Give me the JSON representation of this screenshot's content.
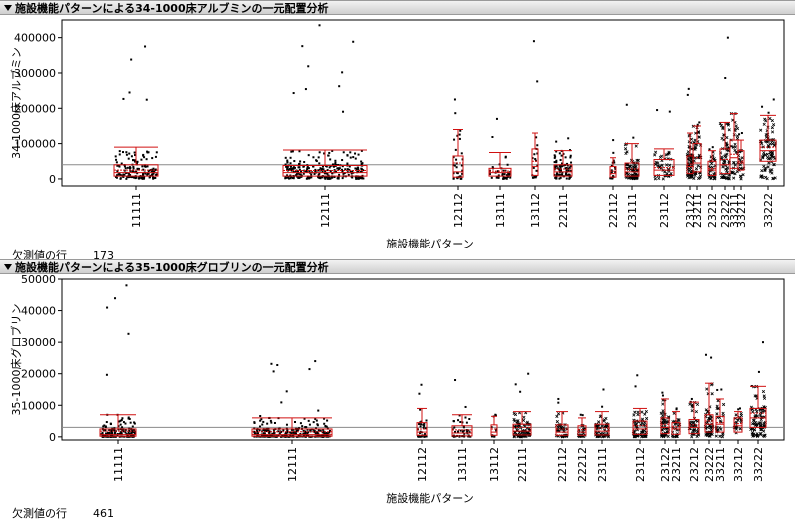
{
  "panels": [
    {
      "title": "施設機能パターンによる34-1000床アルブミンの一元配置分析",
      "missing_label": "欠測値の行",
      "missing_value": "173"
    },
    {
      "title": "施設機能パターンによる35-1000床グロブリンの一元配置分析",
      "missing_label": "欠測値の行",
      "missing_value": "461"
    }
  ],
  "chart_data": [
    {
      "type": "boxplot",
      "title": "施設機能パターンによる34-1000床アルブミンの一元配置分析",
      "xlabel": "施設機能パターン",
      "ylabel": "34-1000床アルブミン",
      "ylim": [
        -20000,
        450000
      ],
      "yticks": [
        0,
        100000,
        200000,
        300000,
        400000
      ],
      "ytick_labels": [
        "0",
        "100000",
        "200000",
        "300000",
        "400000"
      ],
      "grand_mean": 40000,
      "categories": [
        "11111",
        "12111",
        "12112",
        "13111",
        "13112",
        "22111",
        "22112",
        "23111",
        "23112",
        "23122",
        "23211",
        "23212",
        "23222",
        "33211",
        "33212",
        "33222"
      ],
      "box_stats": [
        {
          "q1": 8000,
          "median": 18000,
          "q3": 40000,
          "mean": 25000,
          "whisker_high": 90000,
          "max": 375000,
          "n": 140
        },
        {
          "q1": 8000,
          "median": 18000,
          "q3": 38000,
          "mean": 24000,
          "whisker_high": 82000,
          "max": 435000,
          "n": 260
        },
        {
          "q1": 5000,
          "median": 20000,
          "q3": 65000,
          "mean": 45000,
          "whisker_high": 140000,
          "max": 225000,
          "n": 30
        },
        {
          "q1": 8000,
          "median": 18000,
          "q3": 30000,
          "mean": 22000,
          "whisker_high": 75000,
          "max": 170000,
          "n": 40
        },
        {
          "q1": 10000,
          "median": 35000,
          "q3": 85000,
          "mean": 50000,
          "whisker_high": 130000,
          "max": 390000,
          "n": 20
        },
        {
          "q1": 8000,
          "median": 20000,
          "q3": 40000,
          "mean": 28000,
          "whisker_high": 80000,
          "max": 115000,
          "n": 80
        },
        {
          "q1": 5000,
          "median": 15000,
          "q3": 35000,
          "mean": 22000,
          "whisker_high": 60000,
          "max": 110000,
          "n": 20
        },
        {
          "q1": 8000,
          "median": 20000,
          "q3": 45000,
          "mean": 28000,
          "whisker_high": 100000,
          "max": 210000,
          "n": 70
        },
        {
          "q1": 10000,
          "median": 25000,
          "q3": 55000,
          "mean": 32000,
          "whisker_high": 85000,
          "max": 195000,
          "n": 40
        },
        {
          "q1": 15000,
          "median": 35000,
          "q3": 65000,
          "mean": 42000,
          "whisker_high": 130000,
          "max": 255000,
          "n": 60
        },
        {
          "q1": 20000,
          "median": 45000,
          "q3": 100000,
          "mean": 60000,
          "whisker_high": 150000,
          "max": 160000,
          "n": 40
        },
        {
          "q1": 10000,
          "median": 25000,
          "q3": 50000,
          "mean": 30000,
          "whisker_high": 80000,
          "max": 90000,
          "n": 30
        },
        {
          "q1": 15000,
          "median": 40000,
          "q3": 85000,
          "mean": 55000,
          "whisker_high": 160000,
          "max": 400000,
          "n": 60
        },
        {
          "q1": 30000,
          "median": 60000,
          "q3": 110000,
          "mean": 70000,
          "whisker_high": 185000,
          "max": 185000,
          "n": 30
        },
        {
          "q1": 25000,
          "median": 45000,
          "q3": 80000,
          "mean": 50000,
          "whisker_high": 110000,
          "max": 130000,
          "n": 20
        },
        {
          "q1": 50000,
          "median": 80000,
          "q3": 110000,
          "mean": 90000,
          "whisker_high": 180000,
          "max": 225000,
          "n": 80
        }
      ]
    },
    {
      "type": "boxplot",
      "title": "施設機能パターンによる35-1000床グロブリンの一元配置分析",
      "xlabel": "施設機能パターン",
      "ylabel": "35-1000床グロブリン",
      "ylim": [
        -1000,
        50000
      ],
      "yticks": [
        0,
        10000,
        20000,
        30000,
        40000,
        50000
      ],
      "ytick_labels": [
        "0",
        "10000",
        "20000",
        "30000",
        "40000",
        "50000"
      ],
      "grand_mean": 3000,
      "categories": [
        "11111",
        "12111",
        "12112",
        "13111",
        "13112",
        "22111",
        "22112",
        "22212",
        "23111",
        "23112",
        "23122",
        "23211",
        "23212",
        "23222",
        "33211",
        "33212",
        "33222"
      ],
      "box_stats": [
        {
          "q1": 200,
          "median": 700,
          "q3": 2500,
          "mean": 1800,
          "whisker_high": 7000,
          "max": 48000,
          "n": 140
        },
        {
          "q1": 200,
          "median": 700,
          "q3": 2500,
          "mean": 1600,
          "whisker_high": 6000,
          "max": 24000,
          "n": 260
        },
        {
          "q1": 500,
          "median": 1500,
          "q3": 4500,
          "mean": 2500,
          "whisker_high": 9000,
          "max": 16500,
          "n": 30
        },
        {
          "q1": 300,
          "median": 1200,
          "q3": 3500,
          "mean": 2200,
          "whisker_high": 7000,
          "max": 18000,
          "n": 40
        },
        {
          "q1": 500,
          "median": 1500,
          "q3": 3800,
          "mean": 2500,
          "whisker_high": 6500,
          "max": 7000,
          "n": 10
        },
        {
          "q1": 600,
          "median": 1800,
          "q3": 4000,
          "mean": 3000,
          "whisker_high": 8000,
          "max": 20000,
          "n": 80
        },
        {
          "q1": 500,
          "median": 1500,
          "q3": 3800,
          "mean": 2500,
          "whisker_high": 8000,
          "max": 12000,
          "n": 40
        },
        {
          "q1": 500,
          "median": 1500,
          "q3": 3500,
          "mean": 2300,
          "whisker_high": 6000,
          "max": 7000,
          "n": 20
        },
        {
          "q1": 600,
          "median": 1800,
          "q3": 4000,
          "mean": 2800,
          "whisker_high": 8000,
          "max": 15000,
          "n": 60
        },
        {
          "q1": 800,
          "median": 2500,
          "q3": 5000,
          "mean": 3500,
          "whisker_high": 9000,
          "max": 19500,
          "n": 60
        },
        {
          "q1": 1000,
          "median": 3000,
          "q3": 6000,
          "mean": 4000,
          "whisker_high": 12000,
          "max": 14000,
          "n": 50
        },
        {
          "q1": 800,
          "median": 2500,
          "q3": 4500,
          "mean": 3200,
          "whisker_high": 8000,
          "max": 9000,
          "n": 25
        },
        {
          "q1": 1000,
          "median": 3000,
          "q3": 5500,
          "mean": 3800,
          "whisker_high": 11000,
          "max": 12000,
          "n": 40
        },
        {
          "q1": 1500,
          "median": 4000,
          "q3": 7000,
          "mean": 5000,
          "whisker_high": 17000,
          "max": 26000,
          "n": 50
        },
        {
          "q1": 1500,
          "median": 4000,
          "q3": 6500,
          "mean": 4500,
          "whisker_high": 12000,
          "max": 15000,
          "n": 25
        },
        {
          "q1": 1500,
          "median": 3500,
          "q3": 6000,
          "mean": 4200,
          "whisker_high": 8000,
          "max": 9000,
          "n": 20
        },
        {
          "q1": 3000,
          "median": 6000,
          "q3": 9000,
          "mean": 7500,
          "whisker_high": 16000,
          "max": 30000,
          "n": 80
        }
      ]
    }
  ]
}
